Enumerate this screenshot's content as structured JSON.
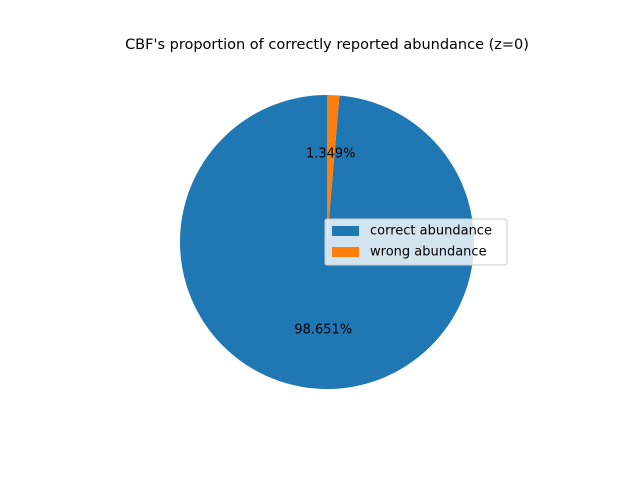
{
  "chart_data": {
    "type": "pie",
    "title": "CBF's proportion of correctly reported abundance (z=0)",
    "slices": [
      {
        "label": "correct abundance",
        "value": 98.651,
        "pct_label": "98.651%",
        "color": "#1f77b4"
      },
      {
        "label": "wrong abundance",
        "value": 1.349,
        "pct_label": "1.349%",
        "color": "#ff7f0e"
      }
    ],
    "start_angle_deg": 90,
    "direction": "counterclockwise",
    "legend_placement": "center-right"
  }
}
